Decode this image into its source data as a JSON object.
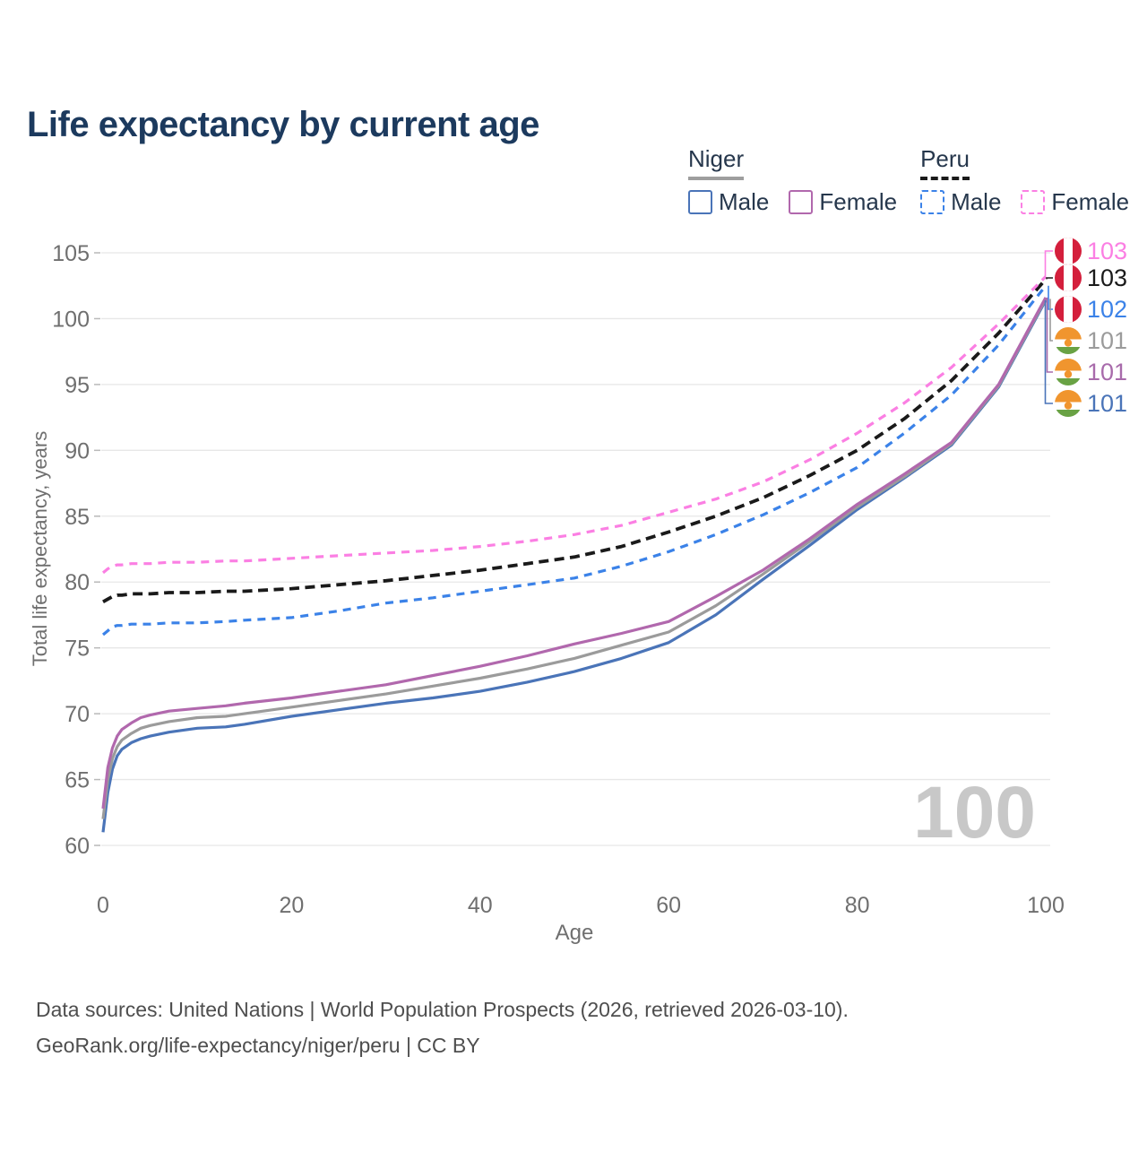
{
  "title": "Life expectancy by current age",
  "legend": {
    "groups": [
      {
        "name": "Niger",
        "line_style": "solid",
        "underline_color": "#9e9e9e",
        "items": [
          {
            "label": "Male",
            "color": "#4a74b8"
          },
          {
            "label": "Female",
            "color": "#b168ad"
          }
        ]
      },
      {
        "name": "Peru",
        "line_style": "dashed",
        "underline_color": "#1a1a1a",
        "items": [
          {
            "label": "Male",
            "color": "#3b82e8"
          },
          {
            "label": "Female",
            "color": "#fb7fe3"
          }
        ]
      }
    ]
  },
  "chart_data": {
    "type": "line",
    "title": "Life expectancy by current age",
    "xlabel": "Age",
    "ylabel": "Total life expectancy, years",
    "xlim": [
      0,
      100
    ],
    "ylim": [
      60,
      105
    ],
    "x_ticks": [
      0,
      20,
      40,
      60,
      80,
      100
    ],
    "y_ticks": [
      60,
      65,
      70,
      75,
      80,
      85,
      90,
      95,
      100,
      105
    ],
    "grid": "horizontal",
    "legend_position": "top-right",
    "x": [
      0,
      0.5,
      1,
      1.5,
      2,
      3,
      4,
      5,
      7,
      10,
      13,
      15,
      20,
      25,
      30,
      35,
      40,
      45,
      50,
      55,
      60,
      65,
      70,
      75,
      80,
      85,
      90,
      95,
      100
    ],
    "series": [
      {
        "name": "Niger Male",
        "country": "Niger",
        "sex": "Male",
        "color": "#4a74b8",
        "dash": null,
        "values": [
          61.0,
          64.0,
          65.8,
          66.8,
          67.3,
          67.8,
          68.1,
          68.3,
          68.6,
          68.9,
          69.0,
          69.2,
          69.8,
          70.3,
          70.8,
          71.2,
          71.7,
          72.4,
          73.2,
          74.2,
          75.4,
          77.5,
          80.2,
          82.8,
          85.5,
          87.9,
          90.4,
          94.8,
          101.4
        ],
        "end_value": 101
      },
      {
        "name": "Niger both sexes",
        "country": "Niger",
        "sex": "Both",
        "color": "#9b9b9b",
        "dash": null,
        "values": [
          62.0,
          65.0,
          66.6,
          67.5,
          68.0,
          68.5,
          68.9,
          69.1,
          69.4,
          69.7,
          69.8,
          70.0,
          70.5,
          71.0,
          71.5,
          72.1,
          72.7,
          73.4,
          74.2,
          75.2,
          76.2,
          78.2,
          80.6,
          83.1,
          85.7,
          88.0,
          90.5,
          94.9,
          101.5
        ],
        "end_value": 101
      },
      {
        "name": "Niger Female",
        "country": "Niger",
        "sex": "Female",
        "color": "#b168ad",
        "dash": null,
        "values": [
          62.8,
          65.9,
          67.4,
          68.3,
          68.8,
          69.3,
          69.7,
          69.9,
          70.2,
          70.4,
          70.6,
          70.8,
          71.2,
          71.7,
          72.2,
          72.9,
          73.6,
          74.4,
          75.3,
          76.1,
          77.0,
          78.9,
          80.9,
          83.3,
          85.9,
          88.2,
          90.6,
          95.0,
          101.6
        ],
        "end_value": 101
      },
      {
        "name": "Peru Male",
        "country": "Peru",
        "sex": "Male",
        "color": "#3b82e8",
        "dash": "9 7",
        "values": [
          76.0,
          76.3,
          76.6,
          76.7,
          76.7,
          76.8,
          76.8,
          76.8,
          76.9,
          76.9,
          77.0,
          77.1,
          77.3,
          77.8,
          78.4,
          78.8,
          79.3,
          79.8,
          80.3,
          81.2,
          82.3,
          83.6,
          85.1,
          86.8,
          88.7,
          91.3,
          94.2,
          98.0,
          102.5
        ],
        "end_value": 102
      },
      {
        "name": "Peru both sexes",
        "country": "Peru",
        "sex": "Both",
        "color": "#1a1a1a",
        "dash": "11 6.5",
        "values": [
          78.5,
          78.7,
          78.9,
          79.0,
          79.0,
          79.1,
          79.1,
          79.1,
          79.2,
          79.2,
          79.3,
          79.3,
          79.5,
          79.8,
          80.1,
          80.5,
          80.9,
          81.4,
          81.9,
          82.7,
          83.8,
          85.0,
          86.4,
          88.1,
          90.0,
          92.4,
          95.3,
          98.9,
          103.0
        ],
        "end_value": 103
      },
      {
        "name": "Peru Female",
        "country": "Peru",
        "sex": "Female",
        "color": "#fb7fe3",
        "dash": "9 7",
        "values": [
          80.7,
          81.0,
          81.2,
          81.3,
          81.3,
          81.4,
          81.4,
          81.4,
          81.5,
          81.5,
          81.6,
          81.6,
          81.8,
          82.0,
          82.2,
          82.4,
          82.7,
          83.1,
          83.6,
          84.3,
          85.3,
          86.3,
          87.6,
          89.3,
          91.3,
          93.6,
          96.3,
          99.6,
          103.2
        ],
        "end_value": 103
      }
    ]
  },
  "end_labels": [
    {
      "value": "103",
      "color": "#fb7fe3",
      "flag": "peru",
      "series": "Peru Female"
    },
    {
      "value": "103",
      "color": "#1a1a1a",
      "flag": "peru",
      "series": "Peru both sexes"
    },
    {
      "value": "102",
      "color": "#3b82e8",
      "flag": "peru",
      "series": "Peru Male"
    },
    {
      "value": "101",
      "color": "#9b9b9b",
      "flag": "niger",
      "series": "Niger both sexes"
    },
    {
      "value": "101",
      "color": "#a86bab",
      "flag": "niger",
      "series": "Niger Female"
    },
    {
      "value": "101",
      "color": "#4a74b8",
      "flag": "niger",
      "series": "Niger Male"
    }
  ],
  "flag_colors": {
    "peru_red": "#d41f3c",
    "niger_orange": "#f0952e",
    "niger_green": "#69a244",
    "white": "#ffffff"
  },
  "watermark": "100",
  "footer": {
    "line1": "Data sources: United Nations | World Population Prospects (2026, retrieved 2026-03-10).",
    "line2": "GeoRank.org/life-expectancy/niger/peru | CC BY"
  },
  "colors": {
    "title": "#1c3a5e",
    "axis_text": "#6f6f6f",
    "gridline": "#e7e7e7",
    "watermark": "#c8c8c8"
  }
}
